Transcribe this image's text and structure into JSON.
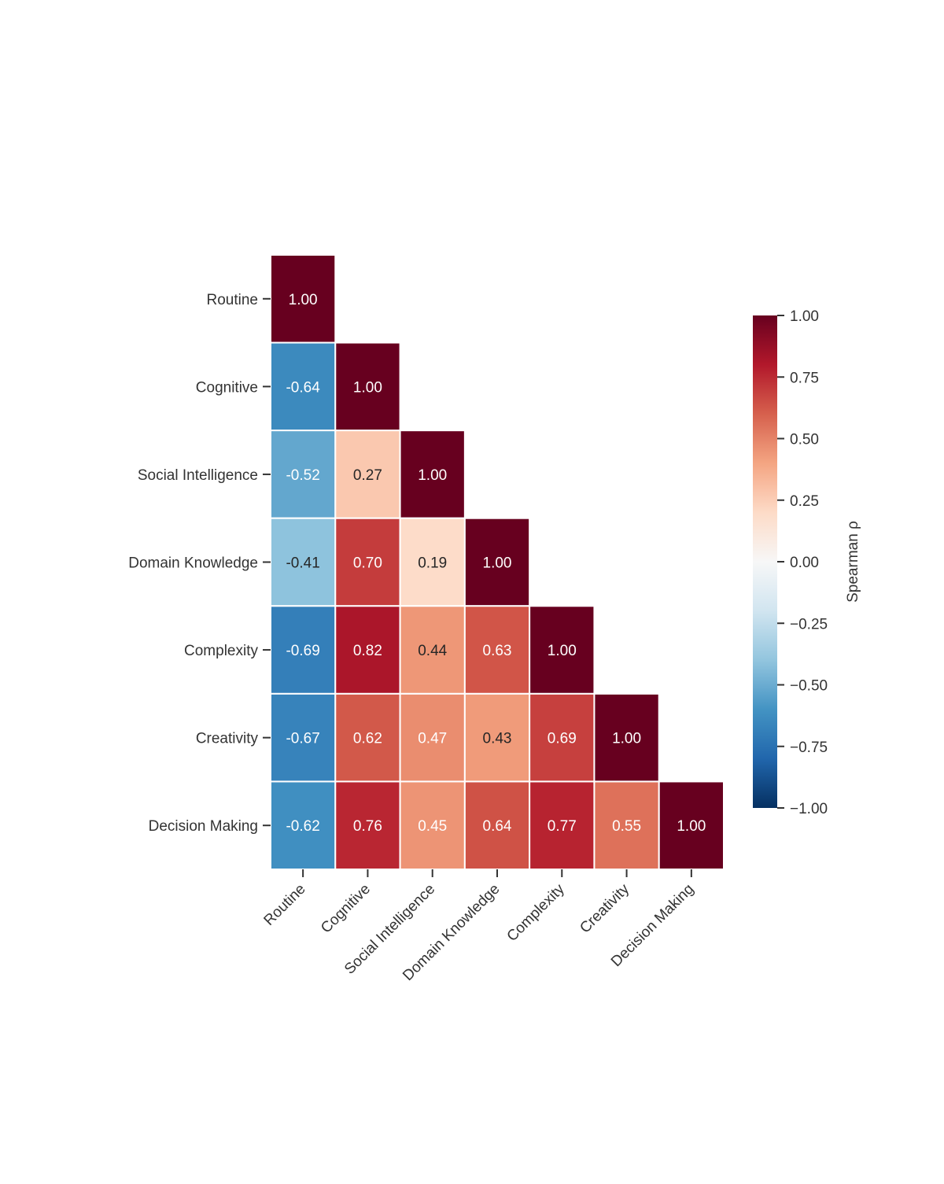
{
  "chart_data": {
    "type": "heatmap",
    "title": "",
    "variables": [
      "Routine",
      "Cognitive",
      "Social Intelligence",
      "Domain Knowledge",
      "Complexity",
      "Creativity",
      "Decision Making"
    ],
    "mask": "upper triangle hidden",
    "matrix": [
      [
        1.0
      ],
      [
        -0.64,
        1.0
      ],
      [
        -0.52,
        0.27,
        1.0
      ],
      [
        -0.41,
        0.7,
        0.19,
        1.0
      ],
      [
        -0.69,
        0.82,
        0.44,
        0.63,
        1.0
      ],
      [
        -0.67,
        0.62,
        0.47,
        0.43,
        0.69,
        1.0
      ],
      [
        -0.62,
        0.76,
        0.45,
        0.64,
        0.77,
        0.55,
        1.0
      ]
    ],
    "value_format": "0.00",
    "colormap": "RdBu_r",
    "colormap_stops": [
      "#053061",
      "#2166ac",
      "#4393c3",
      "#92c5de",
      "#d1e5f0",
      "#f7f7f7",
      "#fddbc7",
      "#f4a582",
      "#d6604d",
      "#b2182b",
      "#67001f"
    ],
    "colorbar": {
      "label": "Spearman ρ",
      "range": [
        -1,
        1
      ],
      "ticks": [
        1.0,
        0.75,
        0.5,
        0.25,
        0.0,
        -0.25,
        -0.5,
        -0.75,
        -1.0
      ],
      "tick_labels": [
        "1.00",
        "0.75",
        "0.50",
        "0.25",
        "0.00",
        "−0.25",
        "−0.50",
        "−0.75",
        "−1.00"
      ]
    },
    "xlabel": "",
    "ylabel": "",
    "x_tick_rotation_deg": 45
  }
}
